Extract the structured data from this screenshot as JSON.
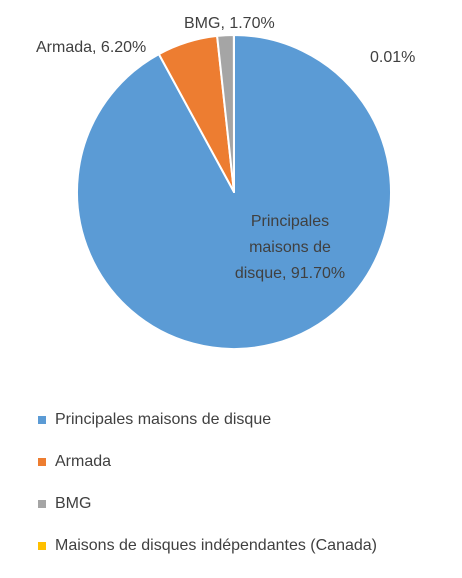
{
  "chart_data": {
    "type": "pie",
    "categories": [
      "Principales maisons de disque",
      "Armada",
      "BMG",
      "Maisons de disques indépendantes (Canada)"
    ],
    "values": [
      91.7,
      6.2,
      1.7,
      0.01
    ],
    "data_labels": [
      "Principales maisons de disque, 91.70%",
      "Armada, 6.20%",
      "BMG, 1.70%",
      "0.01%"
    ],
    "colors": [
      "#5B9BD5",
      "#ED7D31",
      "#A5A5A5",
      "#FFC000"
    ],
    "legend_position": "bottom",
    "start_angle_deg": 0,
    "direction": "clockwise"
  }
}
